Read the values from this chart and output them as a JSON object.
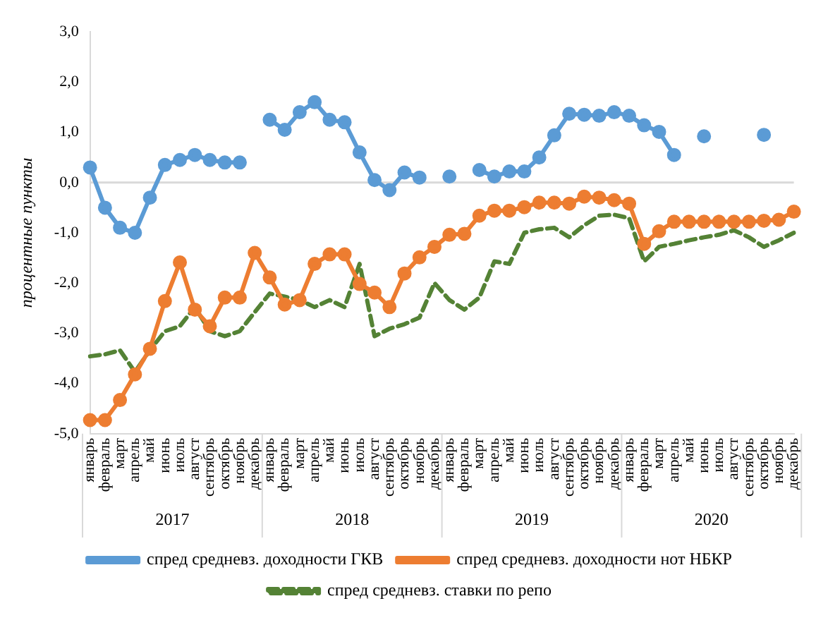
{
  "chart_data": {
    "type": "line",
    "ylabel": "процентные пункты",
    "categories": [
      "январь",
      "февраль",
      "март",
      "апрель",
      "май",
      "июнь",
      "июль",
      "август",
      "сентябрь",
      "октябрь",
      "ноябрь",
      "декабрь",
      "январь",
      "февраль",
      "март",
      "апрель",
      "май",
      "июнь",
      "июль",
      "август",
      "сентябрь",
      "октябрь",
      "ноябрь",
      "декабрь",
      "январь",
      "февраль",
      "март",
      "апрель",
      "май",
      "июнь",
      "июль",
      "август",
      "сентябрь",
      "октябрь",
      "ноябрь",
      "декабрь",
      "январь",
      "февраль",
      "март",
      "апрель",
      "май",
      "июнь",
      "июль",
      "август",
      "сентябрь",
      "октябрь",
      "ноябрь",
      "декабрь"
    ],
    "series": [
      {
        "name": "спред средневз. доходности ГКВ",
        "color": "#5b9bd5",
        "marker": "circle",
        "line_style": "solid",
        "values": [
          0.3,
          -0.5,
          -0.9,
          -1.0,
          -0.3,
          0.35,
          0.45,
          0.55,
          0.45,
          0.4,
          0.4,
          null,
          1.25,
          1.05,
          1.4,
          1.6,
          1.25,
          1.2,
          0.6,
          0.05,
          -0.15,
          0.2,
          0.1,
          null,
          0.12,
          null,
          0.25,
          0.12,
          0.22,
          0.22,
          0.5,
          0.94,
          1.37,
          1.35,
          1.33,
          1.4,
          1.33,
          1.14,
          1.01,
          0.55,
          null,
          0.92,
          null,
          null,
          null,
          0.95,
          null,
          null
        ]
      },
      {
        "name": "спред средневз. доходности нот НБКР",
        "color": "#ed7d31",
        "marker": "circle",
        "line_style": "solid",
        "values": [
          -4.73,
          -4.73,
          -4.33,
          -3.82,
          -3.31,
          -2.36,
          -1.59,
          -2.53,
          -2.86,
          -2.29,
          -2.29,
          -1.4,
          -1.89,
          -2.43,
          -2.34,
          -1.62,
          -1.43,
          -1.43,
          -2.02,
          -2.19,
          -2.48,
          -1.81,
          -1.49,
          -1.28,
          -1.04,
          -1.02,
          -0.66,
          -0.56,
          -0.56,
          -0.49,
          -0.4,
          -0.4,
          -0.42,
          -0.28,
          -0.3,
          -0.35,
          -0.42,
          -1.22,
          -0.97,
          -0.78,
          -0.78,
          -0.78,
          -0.78,
          -0.78,
          -0.78,
          -0.76,
          -0.74,
          -0.58
        ]
      },
      {
        "name": "спред средневз. ставки по репо",
        "color": "#548235",
        "marker": "none",
        "line_style": "dashed",
        "values": [
          -3.46,
          -3.42,
          -3.34,
          -3.77,
          -3.34,
          -2.96,
          -2.86,
          -2.48,
          -2.96,
          -3.06,
          -2.96,
          -2.58,
          -2.21,
          -2.27,
          -2.34,
          -2.48,
          -2.34,
          -2.48,
          -1.62,
          -3.06,
          -2.91,
          -2.82,
          -2.69,
          -2.0,
          -2.34,
          -2.53,
          -2.29,
          -1.57,
          -1.62,
          -1.0,
          -0.93,
          -0.9,
          -1.09,
          -0.85,
          -0.66,
          -0.64,
          -0.71,
          -1.57,
          -1.28,
          -1.22,
          -1.15,
          -1.09,
          -1.04,
          -0.95,
          -1.09,
          -1.28,
          -1.15,
          -1.0
        ]
      }
    ],
    "ylim": [
      -5,
      3
    ],
    "yticks": [
      {
        "value": 3,
        "label": "3,0"
      },
      {
        "value": 2,
        "label": "2,0"
      },
      {
        "value": 1,
        "label": "1,0"
      },
      {
        "value": 0,
        "label": "0,0"
      },
      {
        "value": -1,
        "label": "-1,0"
      },
      {
        "value": -2,
        "label": "-2,0"
      },
      {
        "value": -3,
        "label": "-3,0"
      },
      {
        "value": -4,
        "label": "-4,0"
      },
      {
        "value": -5,
        "label": "-5,0"
      }
    ],
    "ref_lines": [
      {
        "axis": "y",
        "value": 0,
        "color": "#d9d9d9"
      }
    ],
    "annotations": [
      "2017",
      "2018",
      "2019",
      "2020"
    ],
    "grid": false,
    "legend": "bottom"
  }
}
